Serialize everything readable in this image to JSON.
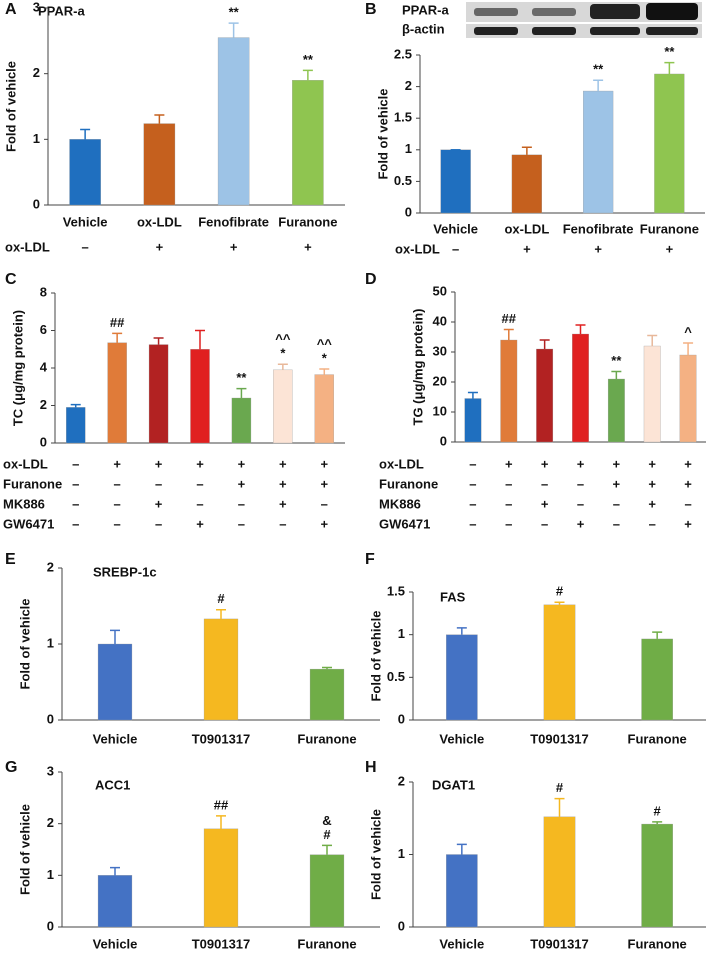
{
  "chart_data": [
    {
      "type": "bar",
      "panel": "A",
      "title": "PPAR-a",
      "y_label": "Fold of vehicle",
      "categories": [
        "Vehicle",
        "ox-LDL",
        "Fenofibrate",
        "Furanone"
      ],
      "values": [
        1.0,
        1.24,
        2.55,
        1.9
      ],
      "errors": [
        0.15,
        0.13,
        0.22,
        0.15
      ],
      "colors": [
        "#1f6fbf",
        "#c5601e",
        "#9dc3e6",
        "#8fc550"
      ],
      "annotations": [
        [],
        [],
        [
          "**"
        ],
        [
          "**"
        ]
      ],
      "treatments": [
        {
          "name": "ox-LDL",
          "signs": [
            "–",
            "+",
            "+",
            "+"
          ]
        }
      ],
      "ylim": [
        0,
        3
      ],
      "yticks": [
        0,
        1,
        2,
        3
      ],
      "grid": false
    },
    {
      "type": "bar",
      "panel": "B",
      "blot_labels": [
        "PPAR-a",
        "β-actin"
      ],
      "y_label": "Fold of vehicle",
      "categories": [
        "Vehicle",
        "ox-LDL",
        "Fenofibrate",
        "Furanone"
      ],
      "values": [
        1.0,
        0.92,
        1.93,
        2.2
      ],
      "errors": [
        0,
        0.12,
        0.17,
        0.18
      ],
      "colors": [
        "#1f6fbf",
        "#c5601e",
        "#9dc3e6",
        "#8fc550"
      ],
      "annotations": [
        [],
        [],
        [
          "**"
        ],
        [
          "**"
        ]
      ],
      "treatments": [
        {
          "name": "ox-LDL",
          "signs": [
            "–",
            "+",
            "+",
            "+"
          ]
        }
      ],
      "ylim": [
        0,
        2.5
      ],
      "yticks": [
        0,
        0.5,
        1,
        1.5,
        2,
        2.5
      ],
      "grid": false
    },
    {
      "type": "bar",
      "panel": "C",
      "y_label": "TC (μg/mg protein)",
      "values": [
        1.9,
        5.35,
        5.25,
        5.0,
        2.4,
        3.9,
        3.65
      ],
      "errors": [
        0.15,
        0.5,
        0.35,
        1.0,
        0.5,
        0.3,
        0.3
      ],
      "colors": [
        "#1f6fbf",
        "#e07b39",
        "#b22222",
        "#e02020",
        "#6aa84f",
        "#fce4d6",
        "#f4b183"
      ],
      "annotations": [
        [],
        [
          "##"
        ],
        [],
        [],
        [
          "**"
        ],
        [
          "*",
          "^^"
        ],
        [
          "*",
          "^^"
        ]
      ],
      "treatments": [
        {
          "name": "ox-LDL",
          "signs": [
            "–",
            "+",
            "+",
            "+",
            "+",
            "+",
            "+"
          ]
        },
        {
          "name": "Furanone",
          "signs": [
            "–",
            "–",
            "–",
            "–",
            "+",
            "+",
            "+"
          ]
        },
        {
          "name": "MK886",
          "signs": [
            "–",
            "–",
            "+",
            "–",
            "–",
            "+",
            "–"
          ]
        },
        {
          "name": "GW6471",
          "signs": [
            "–",
            "–",
            "–",
            "+",
            "–",
            "–",
            "+"
          ]
        }
      ],
      "ylim": [
        0,
        8
      ],
      "yticks": [
        0,
        2,
        4,
        6,
        8
      ],
      "grid": false
    },
    {
      "type": "bar",
      "panel": "D",
      "y_label": "TG (μg/mg protein)",
      "values": [
        14.5,
        34,
        31,
        36,
        21,
        32,
        29
      ],
      "errors": [
        2,
        3.5,
        3,
        3,
        2.5,
        3.5,
        4
      ],
      "colors": [
        "#1f6fbf",
        "#e07b39",
        "#b22222",
        "#e02020",
        "#6aa84f",
        "#fce4d6",
        "#f4b183"
      ],
      "annotations": [
        [],
        [
          "##"
        ],
        [],
        [],
        [
          "**"
        ],
        [],
        [
          "^"
        ]
      ],
      "treatments": [
        {
          "name": "ox-LDL",
          "signs": [
            "–",
            "+",
            "+",
            "+",
            "+",
            "+",
            "+"
          ]
        },
        {
          "name": "Furanone",
          "signs": [
            "–",
            "–",
            "–",
            "–",
            "+",
            "+",
            "+"
          ]
        },
        {
          "name": "MK886",
          "signs": [
            "–",
            "–",
            "+",
            "–",
            "–",
            "+",
            "–"
          ]
        },
        {
          "name": "GW6471",
          "signs": [
            "–",
            "–",
            "–",
            "+",
            "–",
            "–",
            "+"
          ]
        }
      ],
      "ylim": [
        0,
        50
      ],
      "yticks": [
        0,
        10,
        20,
        30,
        40,
        50
      ],
      "grid": false
    },
    {
      "type": "bar",
      "panel": "E",
      "title": "SREBP-1c",
      "y_label": "Fold of vehicle",
      "categories": [
        "Vehicle",
        "T0901317",
        "Furanone"
      ],
      "values": [
        1.0,
        1.33,
        0.67
      ],
      "errors": [
        0.18,
        0.12,
        0.02
      ],
      "colors": [
        "#4472c4",
        "#f5b820",
        "#70ad47"
      ],
      "annotations": [
        [],
        [
          "#"
        ],
        []
      ],
      "ylim": [
        0,
        2
      ],
      "yticks": [
        0,
        1,
        2
      ],
      "grid": false
    },
    {
      "type": "bar",
      "panel": "F",
      "title": "FAS",
      "y_label": "Fold of vehicle",
      "categories": [
        "Vehicle",
        "T0901317",
        "Furanone"
      ],
      "values": [
        1.0,
        1.35,
        0.95
      ],
      "errors": [
        0.08,
        0.03,
        0.08
      ],
      "colors": [
        "#4472c4",
        "#f5b820",
        "#70ad47"
      ],
      "annotations": [
        [],
        [
          "#"
        ],
        []
      ],
      "ylim": [
        0,
        1.5
      ],
      "yticks": [
        0,
        0.5,
        1,
        1.5
      ],
      "grid": false
    },
    {
      "type": "bar",
      "panel": "G",
      "title": "ACC1",
      "y_label": "Fold of vehicle",
      "categories": [
        "Vehicle",
        "T0901317",
        "Furanone"
      ],
      "values": [
        1.0,
        1.9,
        1.4
      ],
      "errors": [
        0.15,
        0.25,
        0.18
      ],
      "colors": [
        "#4472c4",
        "#f5b820",
        "#70ad47"
      ],
      "annotations": [
        [],
        [
          "##"
        ],
        [
          "#",
          "&"
        ]
      ],
      "ylim": [
        0,
        3
      ],
      "yticks": [
        0,
        1,
        2,
        3
      ],
      "grid": false
    },
    {
      "type": "bar",
      "panel": "H",
      "title": "DGAT1",
      "y_label": "Fold of vehicle",
      "categories": [
        "Vehicle",
        "T0901317",
        "Furanone"
      ],
      "values": [
        1.0,
        1.52,
        1.42
      ],
      "errors": [
        0.14,
        0.25,
        0.03
      ],
      "colors": [
        "#4472c4",
        "#f5b820",
        "#70ad47"
      ],
      "annotations": [
        [],
        [
          "#"
        ],
        [
          "#"
        ]
      ],
      "ylim": [
        0,
        2
      ],
      "yticks": [
        0,
        1,
        2
      ],
      "grid": false
    }
  ]
}
